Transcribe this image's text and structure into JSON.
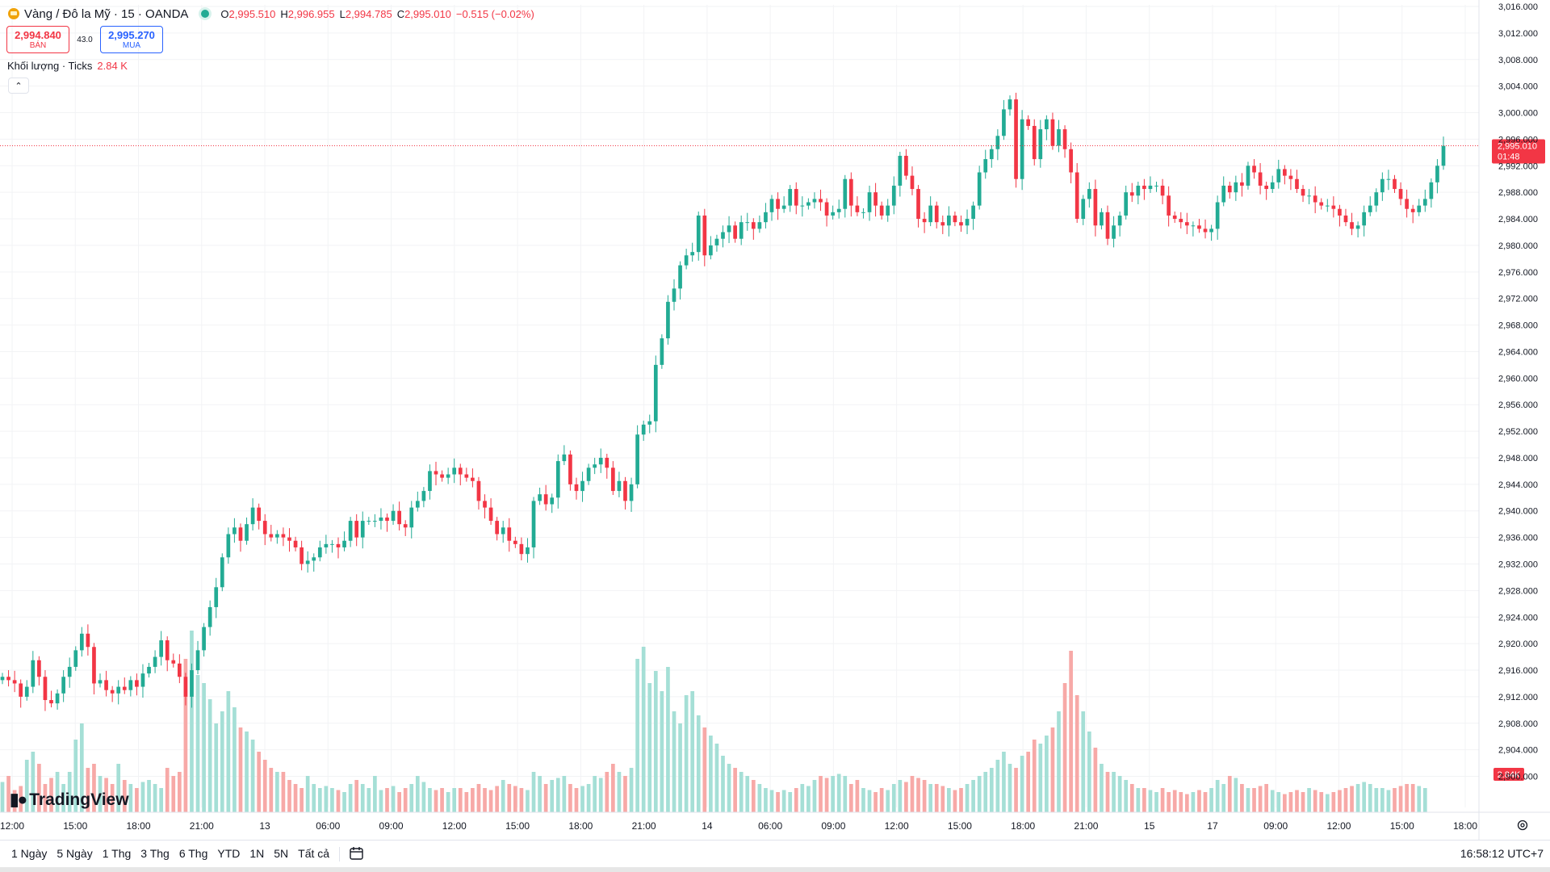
{
  "header": {
    "symbol_name": "Vàng / Đô la Mỹ · 15 · OANDA",
    "ohlc": {
      "o_label": "O",
      "o_value": "2,995.510",
      "h_label": "H",
      "h_value": "2,996.955",
      "l_label": "L",
      "l_value": "2,994.785",
      "c_label": "C",
      "c_value": "2,995.010",
      "change": "−0.515 (−0.02%)"
    }
  },
  "trade": {
    "sell_price": "2,994.840",
    "sell_label": "BÁN",
    "spread": "43.0",
    "buy_price": "2,995.270",
    "buy_label": "MUA"
  },
  "volume_legend": {
    "label": "Khối lượng · Ticks",
    "value": "2.84 K"
  },
  "logo": "TradingView",
  "chart_data": {
    "type": "candlestick",
    "y_axis": {
      "min": 2898,
      "max": 3016,
      "step": 4,
      "ticks": [
        "3,016.000",
        "3,012.000",
        "3,008.000",
        "3,004.000",
        "3,000.000",
        "2,996.000",
        "2,992.000",
        "2,988.000",
        "2,984.000",
        "2,980.000",
        "2,976.000",
        "2,972.000",
        "2,968.000",
        "2,964.000",
        "2,960.000",
        "2,956.000",
        "2,952.000",
        "2,948.000",
        "2,944.000",
        "2,940.000",
        "2,936.000",
        "2,932.000",
        "2,928.000",
        "2,924.000",
        "2,920.000",
        "2,916.000",
        "2,912.000",
        "2,908.000",
        "2,904.000",
        "2,900.000"
      ]
    },
    "x_ticks": [
      "12:00",
      "15:00",
      "18:00",
      "21:00",
      "13",
      "06:00",
      "09:00",
      "12:00",
      "15:00",
      "18:00",
      "21:00",
      "14",
      "06:00",
      "09:00",
      "12:00",
      "15:00",
      "18:00",
      "21:00",
      "15",
      "17",
      "09:00",
      "12:00",
      "15:00",
      "18:00"
    ],
    "current_price": "2,995.010",
    "countdown": "01:48",
    "volume_current": "2.84K",
    "closes": [
      2915.0,
      2914.5,
      2914,
      2912,
      2913.5,
      2917.5,
      2915,
      2911.5,
      2911,
      2912.5,
      2915,
      2916.5,
      2919,
      2921.5,
      2919.5,
      2914,
      2914.5,
      2913,
      2912.5,
      2913.5,
      2913.0,
      2914.5,
      2913.5,
      2915.5,
      2916.5,
      2918.0,
      2920.5,
      2917.5,
      2917.0,
      2915.0,
      2912.0,
      2916.0,
      2919.0,
      2922.5,
      2925.5,
      2928.5,
      2933.0,
      2936.5,
      2937.5,
      2935.5,
      2938.0,
      2940.5,
      2938.5,
      2936.5,
      2936.0,
      2936.5,
      2936.0,
      2935.5,
      2934.5,
      2932.0,
      2932.5,
      2933.0,
      2934.5,
      2935.0,
      2935.0,
      2934.5,
      2935.5,
      2938.5,
      2936.0,
      2938.5,
      2938.5,
      2938.5,
      2939.0,
      2938.5,
      2940.0,
      2938.0,
      2937.5,
      2940.5,
      2941.5,
      2943.0,
      2946.0,
      2945.5,
      2945.0,
      2945.5,
      2946.5,
      2945.5,
      2945.0,
      2944.5,
      2941.5,
      2940.5,
      2938.5,
      2936.5,
      2937.5,
      2935.5,
      2935.0,
      2933.5,
      2934.5,
      2941.5,
      2942.5,
      2941.0,
      2942.0,
      2947.5,
      2948.5,
      2944.0,
      2943.0,
      2944.5,
      2946.5,
      2947.0,
      2948.0,
      2946.5,
      2943.0,
      2944.5,
      2941.5,
      2944.0,
      2951.5,
      2953.0,
      2953.5,
      2962.0,
      2966.0,
      2971.5,
      2973.5,
      2977.0,
      2978.5,
      2979.0,
      2984.5,
      2978.5,
      2980.0,
      2981.0,
      2982.0,
      2983.0,
      2981.0,
      2983.5,
      2983.5,
      2982.5,
      2983.5,
      2985.0,
      2987.0,
      2985.5,
      2986.0,
      2988.5,
      2986.0,
      2986.0,
      2986.5,
      2987.0,
      2986.5,
      2984.5,
      2985.0,
      2985.5,
      2990.0,
      2986.0,
      2985.0,
      2985.0,
      2988.0,
      2986.0,
      2984.5,
      2986.0,
      2989.0,
      2993.5,
      2990.5,
      2988.5,
      2984.0,
      2983.5,
      2986.0,
      2983.5,
      2983.0,
      2984.5,
      2983.5,
      2983.0,
      2984.0,
      2986.0,
      2991.0,
      2993.0,
      2994.5,
      2996.5,
      3000.5,
      3002.0,
      2990.0,
      2999.0,
      2998.0,
      2993.0,
      2997.5,
      2999.0,
      2995.0,
      2997.5,
      2994.5,
      2991.0,
      2984.0,
      2987.0,
      2988.5,
      2983.0,
      2985.0,
      2981.0,
      2983.0,
      2984.5,
      2988.0,
      2987.5,
      2989.0,
      2988.5,
      2989.0,
      2989.0,
      2987.5,
      2984.5,
      2984.0,
      2983.5,
      2983.0,
      2983.0,
      2982.5,
      2982.0,
      2982.5,
      2986.5,
      2989.0,
      2988.0,
      2989.5,
      2989.0,
      2992.0,
      2991.0,
      2989.0,
      2988.5,
      2989.5,
      2991.5,
      2990.5,
      2990.0,
      2988.5,
      2987.5,
      2987.5,
      2986.5,
      2986.0,
      2986.0,
      2985.5,
      2984.5,
      2983.5,
      2982.5,
      2983.0,
      2985.0,
      2986.0,
      2988.0,
      2990.0,
      2990.0,
      2988.5,
      2987.0,
      2985.5,
      2985.0,
      2986.0,
      2987.0,
      2989.5,
      2992.0,
      2995.0
    ],
    "volumes": [
      0.75,
      0.9,
      0.55,
      0.65,
      1.3,
      1.5,
      1.2,
      0.7,
      0.85,
      1.0,
      0.7,
      1.0,
      1.8,
      2.2,
      1.1,
      1.2,
      0.9,
      0.85,
      0.7,
      1.2,
      0.8,
      0.7,
      0.6,
      0.75,
      0.8,
      0.7,
      0.6,
      1.1,
      0.9,
      1.0,
      3.8,
      4.5,
      3.4,
      3.2,
      2.8,
      2.2,
      2.5,
      3.0,
      2.6,
      2.1,
      2.0,
      1.8,
      1.5,
      1.3,
      1.1,
      1.0,
      1.0,
      0.8,
      0.7,
      0.6,
      0.9,
      0.7,
      0.6,
      0.65,
      0.6,
      0.55,
      0.5,
      0.7,
      0.8,
      0.7,
      0.6,
      0.9,
      0.55,
      0.6,
      0.65,
      0.5,
      0.6,
      0.7,
      0.9,
      0.75,
      0.6,
      0.55,
      0.6,
      0.5,
      0.6,
      0.6,
      0.5,
      0.6,
      0.7,
      0.6,
      0.55,
      0.65,
      0.8,
      0.7,
      0.65,
      0.6,
      0.55,
      1.0,
      0.9,
      0.7,
      0.8,
      0.85,
      0.9,
      0.7,
      0.6,
      0.65,
      0.7,
      0.9,
      0.85,
      1.0,
      1.2,
      1.0,
      0.9,
      1.1,
      3.8,
      4.1,
      3.2,
      3.5,
      3.0,
      3.6,
      2.5,
      2.2,
      2.9,
      3.0,
      2.4,
      2.1,
      1.9,
      1.7,
      1.4,
      1.2,
      1.1,
      1.0,
      0.9,
      0.8,
      0.7,
      0.6,
      0.55,
      0.5,
      0.55,
      0.5,
      0.6,
      0.7,
      0.65,
      0.8,
      0.9,
      0.85,
      0.9,
      0.95,
      0.9,
      0.7,
      0.8,
      0.6,
      0.55,
      0.5,
      0.6,
      0.55,
      0.7,
      0.8,
      0.75,
      0.9,
      0.85,
      0.8,
      0.7,
      0.7,
      0.65,
      0.6,
      0.55,
      0.6,
      0.7,
      0.8,
      0.9,
      1.0,
      1.1,
      1.3,
      1.5,
      1.2,
      1.1,
      1.4,
      1.5,
      1.8,
      1.7,
      1.9,
      2.1,
      2.5,
      3.2,
      4.0,
      2.9,
      2.5,
      2.0,
      1.6,
      1.2,
      1.0,
      1.0,
      0.9,
      0.8,
      0.7,
      0.6,
      0.6,
      0.55,
      0.5,
      0.6,
      0.5,
      0.55,
      0.5,
      0.45,
      0.5,
      0.55,
      0.5,
      0.6,
      0.8,
      0.7,
      0.9,
      0.85,
      0.7,
      0.6,
      0.6,
      0.65,
      0.7,
      0.55,
      0.5,
      0.45,
      0.5,
      0.55,
      0.5,
      0.6,
      0.55,
      0.5,
      0.45,
      0.5,
      0.55,
      0.6,
      0.65,
      0.7,
      0.75,
      0.7,
      0.6,
      0.6,
      0.55,
      0.6,
      0.65,
      0.7,
      0.7,
      0.65,
      0.6
    ]
  },
  "ranges": [
    "1 Ngày",
    "5 Ngày",
    "1 Thg",
    "3 Thg",
    "6 Thg",
    "YTD",
    "1N",
    "5N",
    "Tất cả"
  ],
  "clock": "16:58:12 UTC+7",
  "colors": {
    "up": "#22ab94",
    "down": "#f23645",
    "up_vol": "#a5dfd6",
    "down_vol": "#f7a9a7",
    "grid": "#f2f3f5",
    "text": "#131722"
  }
}
